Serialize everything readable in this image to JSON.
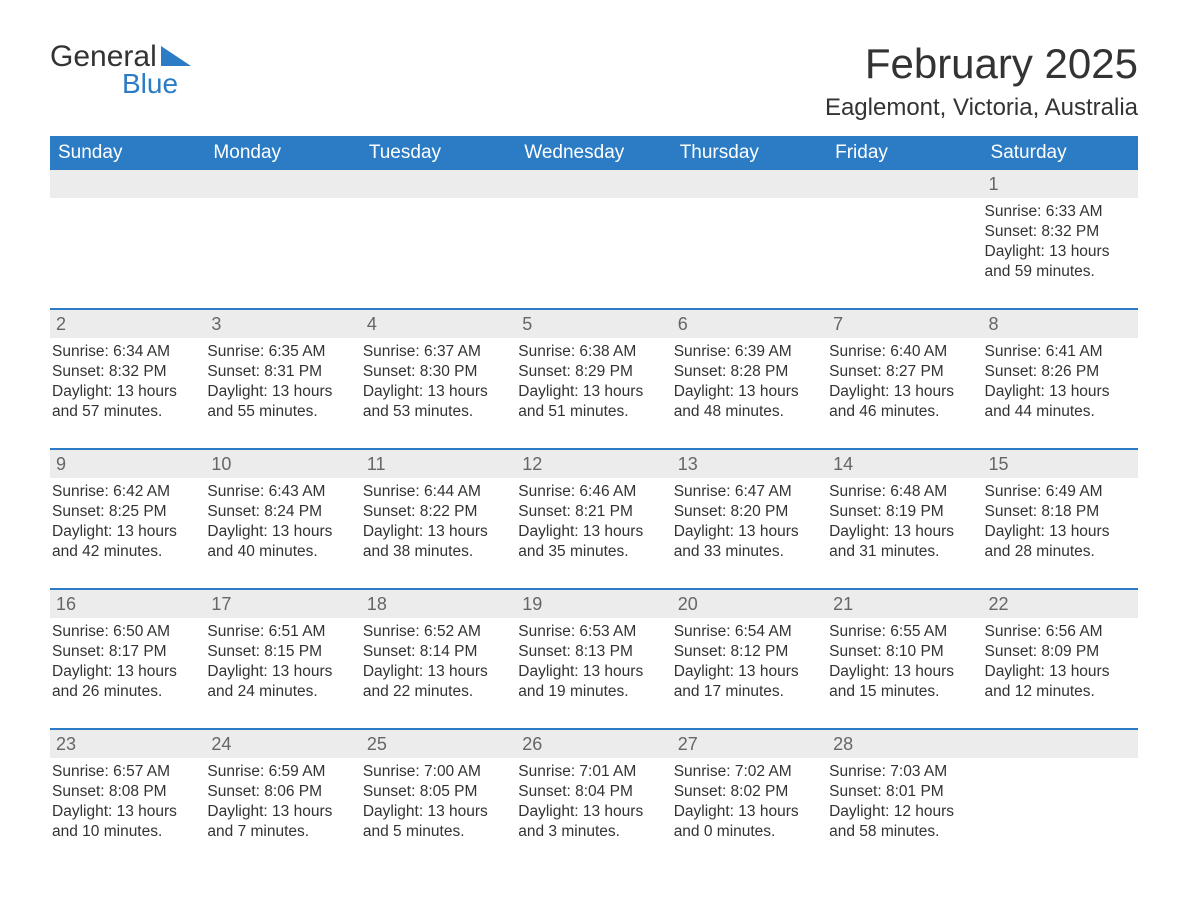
{
  "logo": {
    "text1": "General",
    "text2": "Blue",
    "triangle_color": "#2b7cc4"
  },
  "title": {
    "month": "February 2025",
    "location": "Eaglemont, Victoria, Australia"
  },
  "colors": {
    "header_bg": "#2b7cc4",
    "header_text": "#ffffff",
    "daynum_bg": "#ececec",
    "daynum_text": "#666666",
    "body_text": "#333333",
    "rule": "#2b7cc4",
    "page_bg": "#ffffff"
  },
  "day_headers": [
    "Sunday",
    "Monday",
    "Tuesday",
    "Wednesday",
    "Thursday",
    "Friday",
    "Saturday"
  ],
  "weeks": [
    [
      {
        "empty": true
      },
      {
        "empty": true
      },
      {
        "empty": true
      },
      {
        "empty": true
      },
      {
        "empty": true
      },
      {
        "empty": true
      },
      {
        "num": "1",
        "sunrise": "Sunrise: 6:33 AM",
        "sunset": "Sunset: 8:32 PM",
        "daylight": "Daylight: 13 hours and 59 minutes."
      }
    ],
    [
      {
        "num": "2",
        "sunrise": "Sunrise: 6:34 AM",
        "sunset": "Sunset: 8:32 PM",
        "daylight": "Daylight: 13 hours and 57 minutes."
      },
      {
        "num": "3",
        "sunrise": "Sunrise: 6:35 AM",
        "sunset": "Sunset: 8:31 PM",
        "daylight": "Daylight: 13 hours and 55 minutes."
      },
      {
        "num": "4",
        "sunrise": "Sunrise: 6:37 AM",
        "sunset": "Sunset: 8:30 PM",
        "daylight": "Daylight: 13 hours and 53 minutes."
      },
      {
        "num": "5",
        "sunrise": "Sunrise: 6:38 AM",
        "sunset": "Sunset: 8:29 PM",
        "daylight": "Daylight: 13 hours and 51 minutes."
      },
      {
        "num": "6",
        "sunrise": "Sunrise: 6:39 AM",
        "sunset": "Sunset: 8:28 PM",
        "daylight": "Daylight: 13 hours and 48 minutes."
      },
      {
        "num": "7",
        "sunrise": "Sunrise: 6:40 AM",
        "sunset": "Sunset: 8:27 PM",
        "daylight": "Daylight: 13 hours and 46 minutes."
      },
      {
        "num": "8",
        "sunrise": "Sunrise: 6:41 AM",
        "sunset": "Sunset: 8:26 PM",
        "daylight": "Daylight: 13 hours and 44 minutes."
      }
    ],
    [
      {
        "num": "9",
        "sunrise": "Sunrise: 6:42 AM",
        "sunset": "Sunset: 8:25 PM",
        "daylight": "Daylight: 13 hours and 42 minutes."
      },
      {
        "num": "10",
        "sunrise": "Sunrise: 6:43 AM",
        "sunset": "Sunset: 8:24 PM",
        "daylight": "Daylight: 13 hours and 40 minutes."
      },
      {
        "num": "11",
        "sunrise": "Sunrise: 6:44 AM",
        "sunset": "Sunset: 8:22 PM",
        "daylight": "Daylight: 13 hours and 38 minutes."
      },
      {
        "num": "12",
        "sunrise": "Sunrise: 6:46 AM",
        "sunset": "Sunset: 8:21 PM",
        "daylight": "Daylight: 13 hours and 35 minutes."
      },
      {
        "num": "13",
        "sunrise": "Sunrise: 6:47 AM",
        "sunset": "Sunset: 8:20 PM",
        "daylight": "Daylight: 13 hours and 33 minutes."
      },
      {
        "num": "14",
        "sunrise": "Sunrise: 6:48 AM",
        "sunset": "Sunset: 8:19 PM",
        "daylight": "Daylight: 13 hours and 31 minutes."
      },
      {
        "num": "15",
        "sunrise": "Sunrise: 6:49 AM",
        "sunset": "Sunset: 8:18 PM",
        "daylight": "Daylight: 13 hours and 28 minutes."
      }
    ],
    [
      {
        "num": "16",
        "sunrise": "Sunrise: 6:50 AM",
        "sunset": "Sunset: 8:17 PM",
        "daylight": "Daylight: 13 hours and 26 minutes."
      },
      {
        "num": "17",
        "sunrise": "Sunrise: 6:51 AM",
        "sunset": "Sunset: 8:15 PM",
        "daylight": "Daylight: 13 hours and 24 minutes."
      },
      {
        "num": "18",
        "sunrise": "Sunrise: 6:52 AM",
        "sunset": "Sunset: 8:14 PM",
        "daylight": "Daylight: 13 hours and 22 minutes."
      },
      {
        "num": "19",
        "sunrise": "Sunrise: 6:53 AM",
        "sunset": "Sunset: 8:13 PM",
        "daylight": "Daylight: 13 hours and 19 minutes."
      },
      {
        "num": "20",
        "sunrise": "Sunrise: 6:54 AM",
        "sunset": "Sunset: 8:12 PM",
        "daylight": "Daylight: 13 hours and 17 minutes."
      },
      {
        "num": "21",
        "sunrise": "Sunrise: 6:55 AM",
        "sunset": "Sunset: 8:10 PM",
        "daylight": "Daylight: 13 hours and 15 minutes."
      },
      {
        "num": "22",
        "sunrise": "Sunrise: 6:56 AM",
        "sunset": "Sunset: 8:09 PM",
        "daylight": "Daylight: 13 hours and 12 minutes."
      }
    ],
    [
      {
        "num": "23",
        "sunrise": "Sunrise: 6:57 AM",
        "sunset": "Sunset: 8:08 PM",
        "daylight": "Daylight: 13 hours and 10 minutes."
      },
      {
        "num": "24",
        "sunrise": "Sunrise: 6:59 AM",
        "sunset": "Sunset: 8:06 PM",
        "daylight": "Daylight: 13 hours and 7 minutes."
      },
      {
        "num": "25",
        "sunrise": "Sunrise: 7:00 AM",
        "sunset": "Sunset: 8:05 PM",
        "daylight": "Daylight: 13 hours and 5 minutes."
      },
      {
        "num": "26",
        "sunrise": "Sunrise: 7:01 AM",
        "sunset": "Sunset: 8:04 PM",
        "daylight": "Daylight: 13 hours and 3 minutes."
      },
      {
        "num": "27",
        "sunrise": "Sunrise: 7:02 AM",
        "sunset": "Sunset: 8:02 PM",
        "daylight": "Daylight: 13 hours and 0 minutes."
      },
      {
        "num": "28",
        "sunrise": "Sunrise: 7:03 AM",
        "sunset": "Sunset: 8:01 PM",
        "daylight": "Daylight: 12 hours and 58 minutes."
      },
      {
        "empty": true
      }
    ]
  ]
}
